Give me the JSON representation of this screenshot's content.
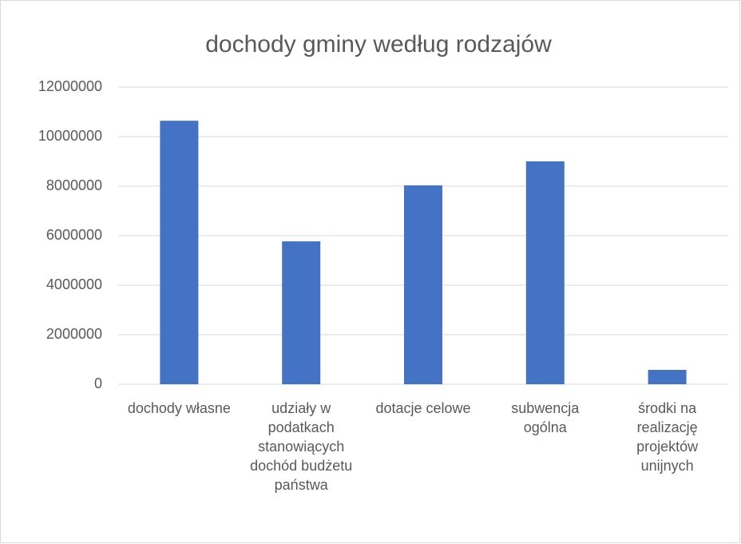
{
  "chart_data": {
    "type": "bar",
    "title": "dochody gminy według rodzajów",
    "categories": [
      "dochody własne",
      "udziały w podatkach stanowiących dochód budżetu państwa",
      "dotacje celowe",
      "subwencja ogólna",
      "środki na realizację projektów unijnych"
    ],
    "values": [
      10640000,
      5770000,
      8030000,
      9000000,
      580000
    ],
    "color": "#4472c4",
    "ylim": [
      0,
      12000000
    ],
    "yticks": [
      0,
      2000000,
      4000000,
      6000000,
      8000000,
      10000000,
      12000000
    ],
    "grid": true
  }
}
